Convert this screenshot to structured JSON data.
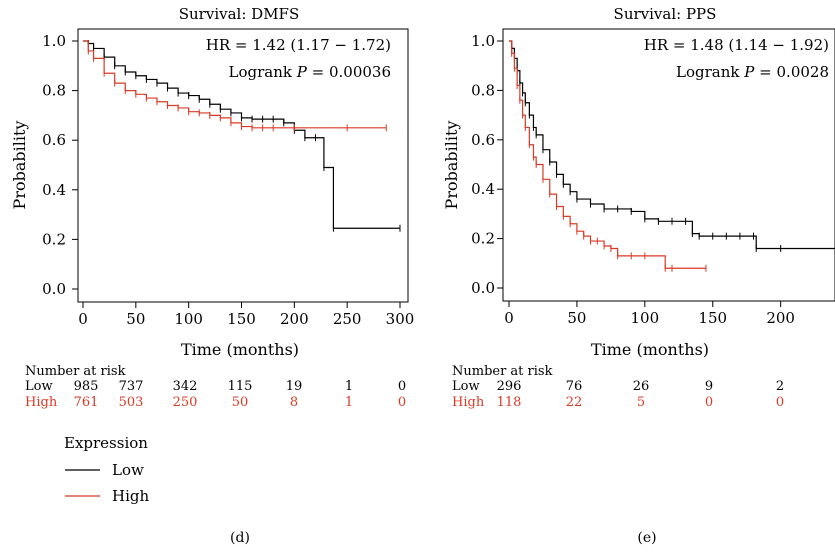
{
  "chart_data": [
    {
      "type": "line",
      "title": "Survival: DMFS",
      "xlabel": "Time (months)",
      "ylabel": "Probability",
      "xlim": [
        0,
        300
      ],
      "ylim": [
        0,
        1
      ],
      "xticks": [
        0,
        50,
        100,
        150,
        200,
        250,
        300
      ],
      "yticks": [
        0.0,
        0.2,
        0.4,
        0.6,
        0.8,
        1.0
      ],
      "xtick_labels": [
        "0",
        "50",
        "100",
        "150",
        "200",
        "250",
        "300"
      ],
      "ytick_labels": [
        "0.0",
        "0.2",
        "0.4",
        "0.6",
        "0.8",
        "1.0"
      ],
      "hr_text": "HR = 1.42 (1.17 − 1.72)",
      "logrank_label": "Logrank",
      "logrank_p": "P",
      "logrank_value": "= 0.00036",
      "series": [
        {
          "name": "Low",
          "color": "#000000",
          "x": [
            0,
            5,
            10,
            20,
            30,
            40,
            50,
            60,
            70,
            80,
            90,
            100,
            110,
            120,
            130,
            140,
            150,
            160,
            170,
            180,
            190,
            200,
            210,
            220,
            228,
            237,
            300
          ],
          "y": [
            1.0,
            0.99,
            0.97,
            0.935,
            0.9,
            0.875,
            0.86,
            0.845,
            0.83,
            0.81,
            0.79,
            0.78,
            0.765,
            0.745,
            0.725,
            0.71,
            0.69,
            0.685,
            0.685,
            0.685,
            0.67,
            0.64,
            0.61,
            0.61,
            0.49,
            0.245,
            0.245
          ]
        },
        {
          "name": "High",
          "color": "#d93a26",
          "x": [
            0,
            5,
            10,
            20,
            30,
            40,
            50,
            60,
            70,
            80,
            90,
            100,
            110,
            120,
            130,
            140,
            150,
            160,
            170,
            180,
            200,
            250,
            287
          ],
          "y": [
            1.0,
            0.96,
            0.93,
            0.87,
            0.83,
            0.8,
            0.785,
            0.77,
            0.755,
            0.74,
            0.73,
            0.715,
            0.71,
            0.7,
            0.69,
            0.67,
            0.655,
            0.65,
            0.65,
            0.65,
            0.65,
            0.65,
            0.65
          ]
        }
      ]
    },
    {
      "type": "line",
      "title": "Survival: PPS",
      "xlabel": "Time (months)",
      "ylabel": "Probability",
      "xlim": [
        0,
        240
      ],
      "ylim": [
        0,
        1
      ],
      "xticks": [
        0,
        50,
        100,
        150,
        200
      ],
      "yticks": [
        0.0,
        0.2,
        0.4,
        0.6,
        0.8,
        1.0
      ],
      "xtick_labels": [
        "0",
        "50",
        "100",
        "150",
        "200"
      ],
      "ytick_labels": [
        "0.0",
        "0.2",
        "0.4",
        "0.6",
        "0.8",
        "1.0"
      ],
      "hr_text": "HR = 1.48 (1.14 − 1.92)",
      "logrank_label": "Logrank",
      "logrank_p": "P",
      "logrank_value": "= 0.0028",
      "series": [
        {
          "name": "Low",
          "color": "#000000",
          "x": [
            0,
            2,
            4,
            6,
            8,
            10,
            12,
            15,
            18,
            20,
            25,
            30,
            35,
            40,
            45,
            50,
            60,
            70,
            80,
            90,
            100,
            110,
            120,
            130,
            135,
            140,
            150,
            160,
            170,
            180,
            182,
            200,
            240
          ],
          "y": [
            1.0,
            0.97,
            0.93,
            0.88,
            0.83,
            0.79,
            0.75,
            0.7,
            0.65,
            0.62,
            0.56,
            0.51,
            0.46,
            0.42,
            0.39,
            0.36,
            0.34,
            0.32,
            0.32,
            0.31,
            0.28,
            0.27,
            0.27,
            0.27,
            0.22,
            0.21,
            0.21,
            0.21,
            0.21,
            0.21,
            0.16,
            0.16,
            0.16
          ]
        },
        {
          "name": "High",
          "color": "#d93a26",
          "x": [
            0,
            2,
            4,
            6,
            8,
            10,
            12,
            15,
            18,
            20,
            25,
            30,
            35,
            40,
            45,
            50,
            55,
            60,
            65,
            70,
            75,
            80,
            90,
            100,
            115,
            120,
            145
          ],
          "y": [
            1.0,
            0.95,
            0.89,
            0.82,
            0.76,
            0.7,
            0.65,
            0.58,
            0.53,
            0.5,
            0.44,
            0.38,
            0.33,
            0.29,
            0.26,
            0.23,
            0.21,
            0.19,
            0.19,
            0.17,
            0.16,
            0.13,
            0.13,
            0.13,
            0.08,
            0.08,
            0.08
          ]
        }
      ]
    }
  ],
  "risk_tables": [
    {
      "heading": "Number at risk",
      "rows": [
        {
          "label": "Low",
          "color": "#000000",
          "values": [
            "985",
            "737",
            "342",
            "115",
            "19",
            "1",
            "0"
          ]
        },
        {
          "label": "High",
          "color": "#d93a26",
          "values": [
            "761",
            "503",
            "250",
            "50",
            "8",
            "1",
            "0"
          ]
        }
      ]
    },
    {
      "heading": "Number at risk",
      "rows": [
        {
          "label": "Low",
          "color": "#000000",
          "values": [
            "296",
            "76",
            "26",
            "9",
            "2"
          ]
        },
        {
          "label": "High",
          "color": "#d93a26",
          "values": [
            "118",
            "22",
            "5",
            "0",
            "0"
          ]
        }
      ]
    }
  ],
  "legend": {
    "title": "Expression",
    "items": [
      {
        "label": "Low",
        "color": "#000000"
      },
      {
        "label": "High",
        "color": "#d93a26"
      }
    ]
  },
  "panel_labels": [
    "(d)",
    "(e)"
  ]
}
